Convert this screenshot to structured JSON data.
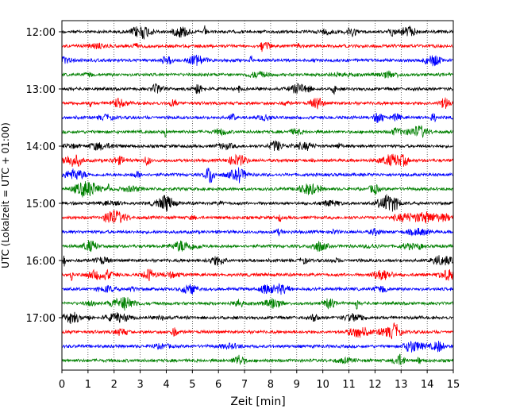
{
  "chart_data": {
    "type": "line",
    "xlabel": "Zeit  [min]",
    "ylabel": "UTC (Lokalzeit = UTC + 01:00)",
    "xlim": [
      0,
      15
    ],
    "x_ticks": [
      "0",
      "1",
      "2",
      "3",
      "4",
      "5",
      "6",
      "7",
      "8",
      "9",
      "10",
      "11",
      "12",
      "13",
      "14",
      "15"
    ],
    "y_tick_labels": [
      "12:00",
      "13:00",
      "14:00",
      "15:00",
      "16:00",
      "17:00"
    ],
    "grid": "vertical dotted at each minute",
    "trace_interval_minutes": 15,
    "trace_colors": [
      "#000000",
      "#ff0000",
      "#0000ff",
      "#008000"
    ],
    "traces": [
      {
        "start": "12:00",
        "color": "#000000"
      },
      {
        "start": "12:15",
        "color": "#ff0000"
      },
      {
        "start": "12:30",
        "color": "#0000ff"
      },
      {
        "start": "12:45",
        "color": "#008000"
      },
      {
        "start": "13:00",
        "color": "#000000"
      },
      {
        "start": "13:15",
        "color": "#ff0000"
      },
      {
        "start": "13:30",
        "color": "#0000ff"
      },
      {
        "start": "13:45",
        "color": "#008000"
      },
      {
        "start": "14:00",
        "color": "#000000"
      },
      {
        "start": "14:15",
        "color": "#ff0000"
      },
      {
        "start": "14:30",
        "color": "#0000ff"
      },
      {
        "start": "14:45",
        "color": "#008000"
      },
      {
        "start": "15:00",
        "color": "#000000"
      },
      {
        "start": "15:15",
        "color": "#ff0000"
      },
      {
        "start": "15:30",
        "color": "#0000ff"
      },
      {
        "start": "15:45",
        "color": "#008000"
      },
      {
        "start": "16:00",
        "color": "#000000"
      },
      {
        "start": "16:15",
        "color": "#ff0000"
      },
      {
        "start": "16:30",
        "color": "#0000ff"
      },
      {
        "start": "16:45",
        "color": "#008000"
      },
      {
        "start": "17:00",
        "color": "#000000"
      },
      {
        "start": "17:15",
        "color": "#ff0000"
      },
      {
        "start": "17:30",
        "color": "#0000ff"
      },
      {
        "start": "17:45",
        "color": "#008000"
      }
    ]
  }
}
